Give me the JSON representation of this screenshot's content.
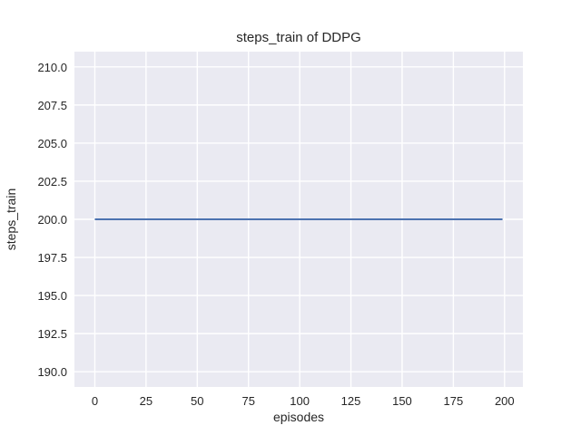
{
  "chart_data": {
    "type": "line",
    "title": "steps_train of DDPG",
    "xlabel": "episodes",
    "ylabel": "steps_train",
    "x_ticks": [
      0,
      25,
      50,
      75,
      100,
      125,
      150,
      175,
      200
    ],
    "y_ticks": [
      190.0,
      192.5,
      195.0,
      197.5,
      200.0,
      202.5,
      205.0,
      207.5,
      210.0
    ],
    "y_tick_decimals": 1,
    "xlim": [
      -9.95,
      208.95
    ],
    "ylim": [
      189.0,
      211.0
    ],
    "grid": true,
    "legend": null,
    "series": [
      {
        "name": "steps_train",
        "color": "#4c72b0",
        "x": [
          0,
          199
        ],
        "y": [
          200,
          200
        ]
      }
    ],
    "style": {
      "plot_background": "#eaeaf2",
      "grid_color": "#ffffff",
      "text_color": "#262626",
      "figure_background": "#ffffff"
    }
  }
}
